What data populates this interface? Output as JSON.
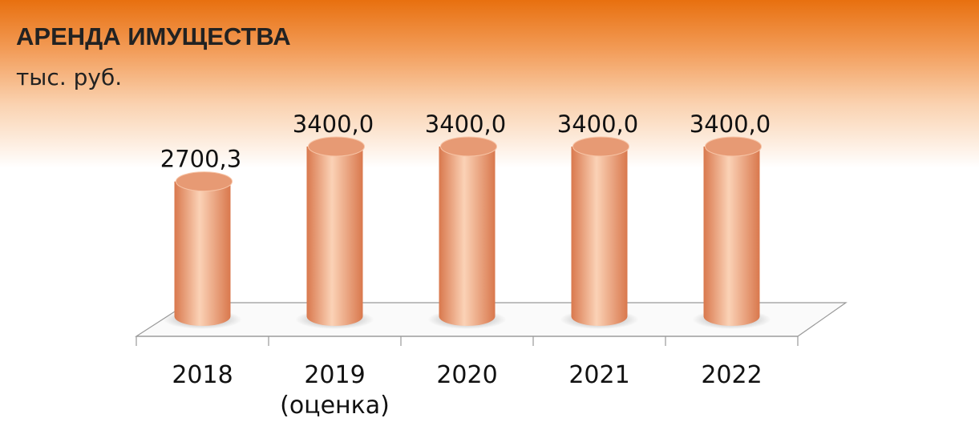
{
  "chart_data": {
    "type": "bar3d",
    "title": "АРЕНДА ИМУЩЕСТВА",
    "subtitle": "тыс. руб.",
    "categories": [
      "2018",
      "2019 (оценка)",
      "2020",
      "2021",
      "2022"
    ],
    "values": [
      2700.3,
      3400,
      3400,
      3400,
      3400
    ],
    "value_labels": [
      "2700,3",
      "3400,0",
      "3400,0",
      "3400,0",
      "3400,0"
    ],
    "color": "#f4b08c"
  }
}
